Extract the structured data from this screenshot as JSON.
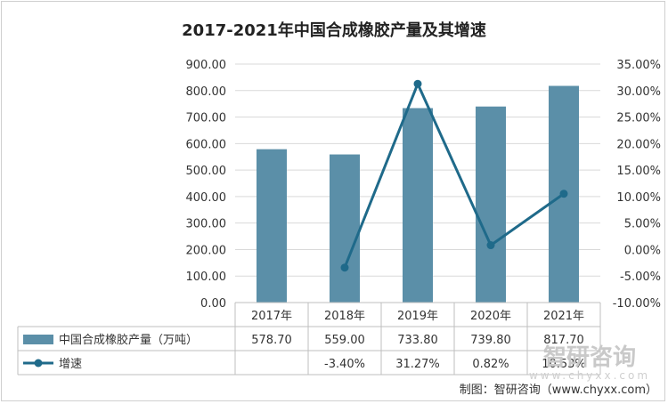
{
  "chart_data": {
    "type": "bar+line",
    "title": "2017-2021年中国合成橡胶产量及其增速",
    "categories": [
      "2017年",
      "2018年",
      "2019年",
      "2020年",
      "2021年"
    ],
    "series": [
      {
        "name": "中国合成橡胶产量（万吨）",
        "type": "bar",
        "axis": "left",
        "values": [
          578.7,
          559.0,
          733.8,
          739.8,
          817.7
        ],
        "labels": [
          "578.70",
          "559.00",
          "733.80",
          "739.80",
          "817.70"
        ],
        "color": "#5b8fa8"
      },
      {
        "name": "增速",
        "type": "line",
        "axis": "right",
        "values": [
          null,
          -3.4,
          31.27,
          0.82,
          10.53
        ],
        "labels": [
          "",
          "-3.40%",
          "31.27%",
          "0.82%",
          "10.53%"
        ],
        "color": "#1f6a8a"
      }
    ],
    "left_axis": {
      "ylim": [
        0,
        900
      ],
      "ticks": [
        "0.00",
        "100.00",
        "200.00",
        "300.00",
        "400.00",
        "500.00",
        "600.00",
        "700.00",
        "800.00",
        "900.00"
      ]
    },
    "right_axis": {
      "ylim": [
        -10,
        35
      ],
      "ticks": [
        "-10.00%",
        "-5.00%",
        "0.00%",
        "5.00%",
        "10.00%",
        "15.00%",
        "20.00%",
        "25.00%",
        "30.00%",
        "35.00%"
      ]
    },
    "grid": true,
    "legend": "data-table"
  },
  "source": "制图：智研咨询（www.chyxx.com）",
  "watermark": {
    "text": "智研咨询",
    "sub": "www.chyxx.com"
  }
}
